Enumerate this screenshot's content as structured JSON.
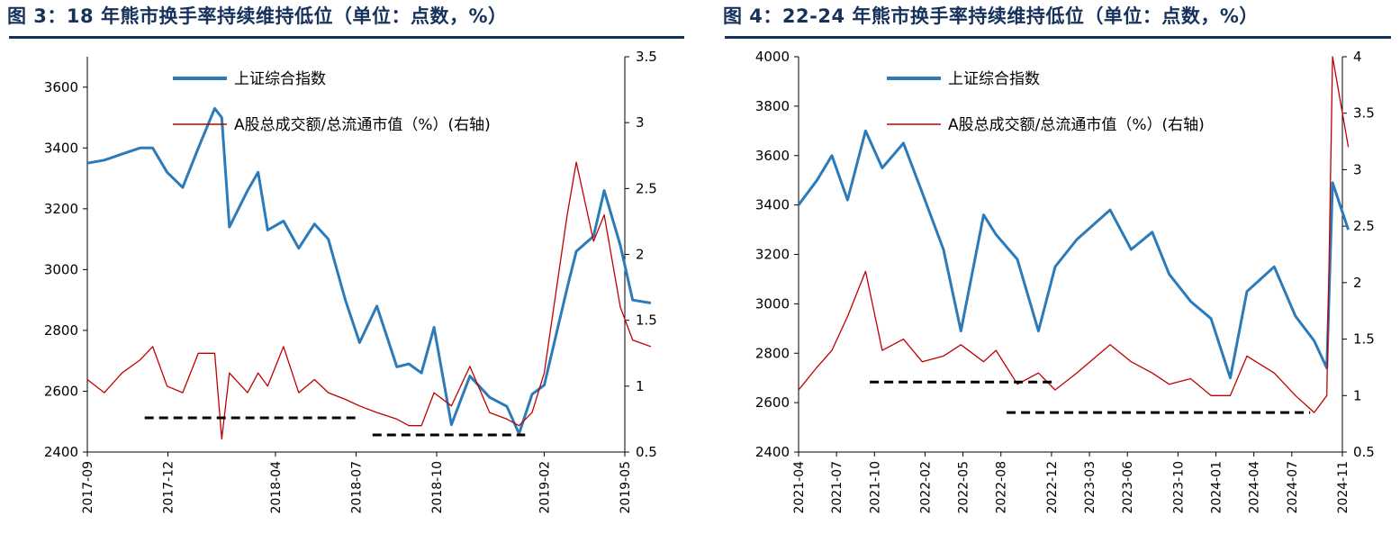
{
  "colors": {
    "title": "#16325c",
    "index_line": "#2b7bba",
    "turnover_line": "#c00000",
    "dashed": "#000000"
  },
  "chart_data": [
    {
      "type": "line",
      "title": "图 3：18 年熊市换手率持续维持低位（单位：点数，%）",
      "x_ticks": [
        "2017-09",
        "2017-12",
        "2018-04",
        "2018-07",
        "2018-10",
        "2019-02",
        "2019-05"
      ],
      "y_left": {
        "lim": [
          2400,
          3700
        ],
        "ticks": [
          "2400",
          "2600",
          "2800",
          "3000",
          "3200",
          "3400",
          "3600"
        ]
      },
      "y_right": {
        "lim": [
          0.5,
          3.5
        ],
        "ticks": [
          "0.5",
          "1",
          "1.5",
          "2",
          "2.5",
          "3",
          "3.5"
        ]
      },
      "legend": [
        "上证综合指数",
        "A股总成交额/总流通市值（%）(右轴)"
      ],
      "series": [
        {
          "name": "上证综合指数",
          "axis": "left",
          "x": [
            "2017-09-01",
            "2017-09-20",
            "2017-10-10",
            "2017-10-31",
            "2017-11-14",
            "2017-11-30",
            "2017-12-18",
            "2018-01-05",
            "2018-01-24",
            "2018-02-01",
            "2018-02-09",
            "2018-02-28",
            "2018-03-12",
            "2018-03-23",
            "2018-04-10",
            "2018-04-27",
            "2018-05-15",
            "2018-05-31",
            "2018-06-19",
            "2018-07-05",
            "2018-07-25",
            "2018-08-17",
            "2018-08-31",
            "2018-09-14",
            "2018-09-28",
            "2018-10-18",
            "2018-11-08",
            "2018-11-30",
            "2018-12-20",
            "2019-01-03",
            "2019-01-18",
            "2019-02-01",
            "2019-02-25",
            "2019-03-07",
            "2019-03-27",
            "2019-04-08",
            "2019-04-26",
            "2019-05-10",
            "2019-05-31"
          ],
          "values": [
            3350,
            3360,
            3380,
            3400,
            3400,
            3320,
            3270,
            3400,
            3530,
            3500,
            3140,
            3260,
            3320,
            3130,
            3160,
            3070,
            3150,
            3100,
            2900,
            2760,
            2880,
            2680,
            2690,
            2660,
            2810,
            2490,
            2650,
            2580,
            2550,
            2460,
            2590,
            2620,
            2940,
            3060,
            3110,
            3260,
            3080,
            2900,
            2890
          ]
        },
        {
          "name": "A股总成交额/总流通市值（%）(右轴)",
          "axis": "right",
          "x": [
            "2017-09-01",
            "2017-09-20",
            "2017-10-10",
            "2017-10-31",
            "2017-11-14",
            "2017-11-30",
            "2017-12-18",
            "2018-01-05",
            "2018-01-24",
            "2018-02-01",
            "2018-02-09",
            "2018-02-28",
            "2018-03-12",
            "2018-03-23",
            "2018-04-10",
            "2018-04-27",
            "2018-05-15",
            "2018-05-31",
            "2018-06-19",
            "2018-07-05",
            "2018-07-25",
            "2018-08-17",
            "2018-08-31",
            "2018-09-14",
            "2018-09-28",
            "2018-10-18",
            "2018-11-08",
            "2018-11-30",
            "2018-12-20",
            "2019-01-03",
            "2019-01-18",
            "2019-02-01",
            "2019-02-25",
            "2019-03-07",
            "2019-03-27",
            "2019-04-08",
            "2019-04-26",
            "2019-05-10",
            "2019-05-31"
          ],
          "values": [
            1.05,
            0.95,
            1.1,
            1.2,
            1.3,
            1.0,
            0.95,
            1.25,
            1.25,
            0.6,
            1.1,
            0.95,
            1.1,
            1.0,
            1.3,
            0.95,
            1.05,
            0.95,
            0.9,
            0.85,
            0.8,
            0.75,
            0.7,
            0.7,
            0.95,
            0.85,
            1.15,
            0.8,
            0.75,
            0.7,
            0.8,
            1.1,
            2.3,
            2.7,
            2.1,
            2.3,
            1.6,
            1.35,
            1.3
          ]
        }
      ],
      "annotations": [
        {
          "type": "dashed",
          "x": [
            "2017-11-05",
            "2018-07-01"
          ],
          "y_right": 0.76
        },
        {
          "type": "dashed",
          "x": [
            "2018-07-20",
            "2019-01-10"
          ],
          "y_right": 0.63
        }
      ]
    },
    {
      "type": "line",
      "title": "图 4：22-24 年熊市换手率持续维持低位（单位：点数，%）",
      "x_ticks": [
        "2021-04",
        "2021-07",
        "2021-10",
        "2022-02",
        "2022-05",
        "2022-08",
        "2022-12",
        "2023-03",
        "2023-06",
        "2023-10",
        "2024-01",
        "2024-04",
        "2024-07",
        "2024-11"
      ],
      "y_left": {
        "lim": [
          2400,
          4000
        ],
        "ticks": [
          "2400",
          "2600",
          "2800",
          "3000",
          "3200",
          "3400",
          "3600",
          "3800",
          "4000"
        ]
      },
      "y_right": {
        "lim": [
          0.5,
          4
        ],
        "ticks": [
          "0.5",
          "1",
          "1.5",
          "2",
          "2.5",
          "3",
          "3.5",
          "4"
        ]
      },
      "legend": [
        "上证综合指数",
        "A股总成交额/总流通市值（%）(右轴)"
      ],
      "series": [
        {
          "name": "上证综合指数",
          "axis": "left",
          "x": [
            "2021-04-01",
            "2021-05-15",
            "2021-06-20",
            "2021-07-28",
            "2021-09-10",
            "2021-10-20",
            "2021-12-10",
            "2022-01-25",
            "2022-03-15",
            "2022-04-26",
            "2022-06-20",
            "2022-07-20",
            "2022-09-10",
            "2022-10-31",
            "2022-12-10",
            "2023-02-01",
            "2023-04-20",
            "2023-06-10",
            "2023-07-31",
            "2023-09-10",
            "2023-11-01",
            "2023-12-20",
            "2024-02-05",
            "2024-03-15",
            "2024-05-20",
            "2024-07-10",
            "2024-08-25",
            "2024-09-24",
            "2024-10-08",
            "2024-11-15"
          ],
          "values": [
            3400,
            3500,
            3600,
            3420,
            3700,
            3550,
            3650,
            3450,
            3220,
            2890,
            3360,
            3280,
            3180,
            2890,
            3150,
            3260,
            3380,
            3220,
            3290,
            3120,
            3010,
            2940,
            2700,
            3050,
            3150,
            2950,
            2850,
            2740,
            3490,
            3300
          ]
        },
        {
          "name": "A股总成交额/总流通市值（%）(右轴)",
          "axis": "right",
          "x": [
            "2021-04-01",
            "2021-05-15",
            "2021-06-20",
            "2021-07-28",
            "2021-09-10",
            "2021-10-20",
            "2021-12-10",
            "2022-01-25",
            "2022-03-15",
            "2022-04-26",
            "2022-06-20",
            "2022-07-20",
            "2022-09-10",
            "2022-10-31",
            "2022-12-10",
            "2023-02-01",
            "2023-04-20",
            "2023-06-10",
            "2023-07-31",
            "2023-09-10",
            "2023-11-01",
            "2023-12-20",
            "2024-02-05",
            "2024-03-15",
            "2024-05-20",
            "2024-07-10",
            "2024-08-25",
            "2024-09-24",
            "2024-10-08",
            "2024-11-15"
          ],
          "values": [
            1.05,
            1.25,
            1.4,
            1.7,
            2.1,
            1.4,
            1.5,
            1.3,
            1.35,
            1.45,
            1.3,
            1.4,
            1.1,
            1.2,
            1.05,
            1.2,
            1.45,
            1.3,
            1.2,
            1.1,
            1.15,
            1.0,
            1.0,
            1.35,
            1.2,
            1.0,
            0.85,
            1.0,
            4.0,
            3.2
          ]
        }
      ],
      "annotations": [
        {
          "type": "dashed",
          "x": [
            "2021-09-20",
            "2022-12-15"
          ],
          "y_right": 1.12
        },
        {
          "type": "dashed",
          "x": [
            "2022-08-15",
            "2024-08-15"
          ],
          "y_right": 0.85
        }
      ]
    }
  ]
}
